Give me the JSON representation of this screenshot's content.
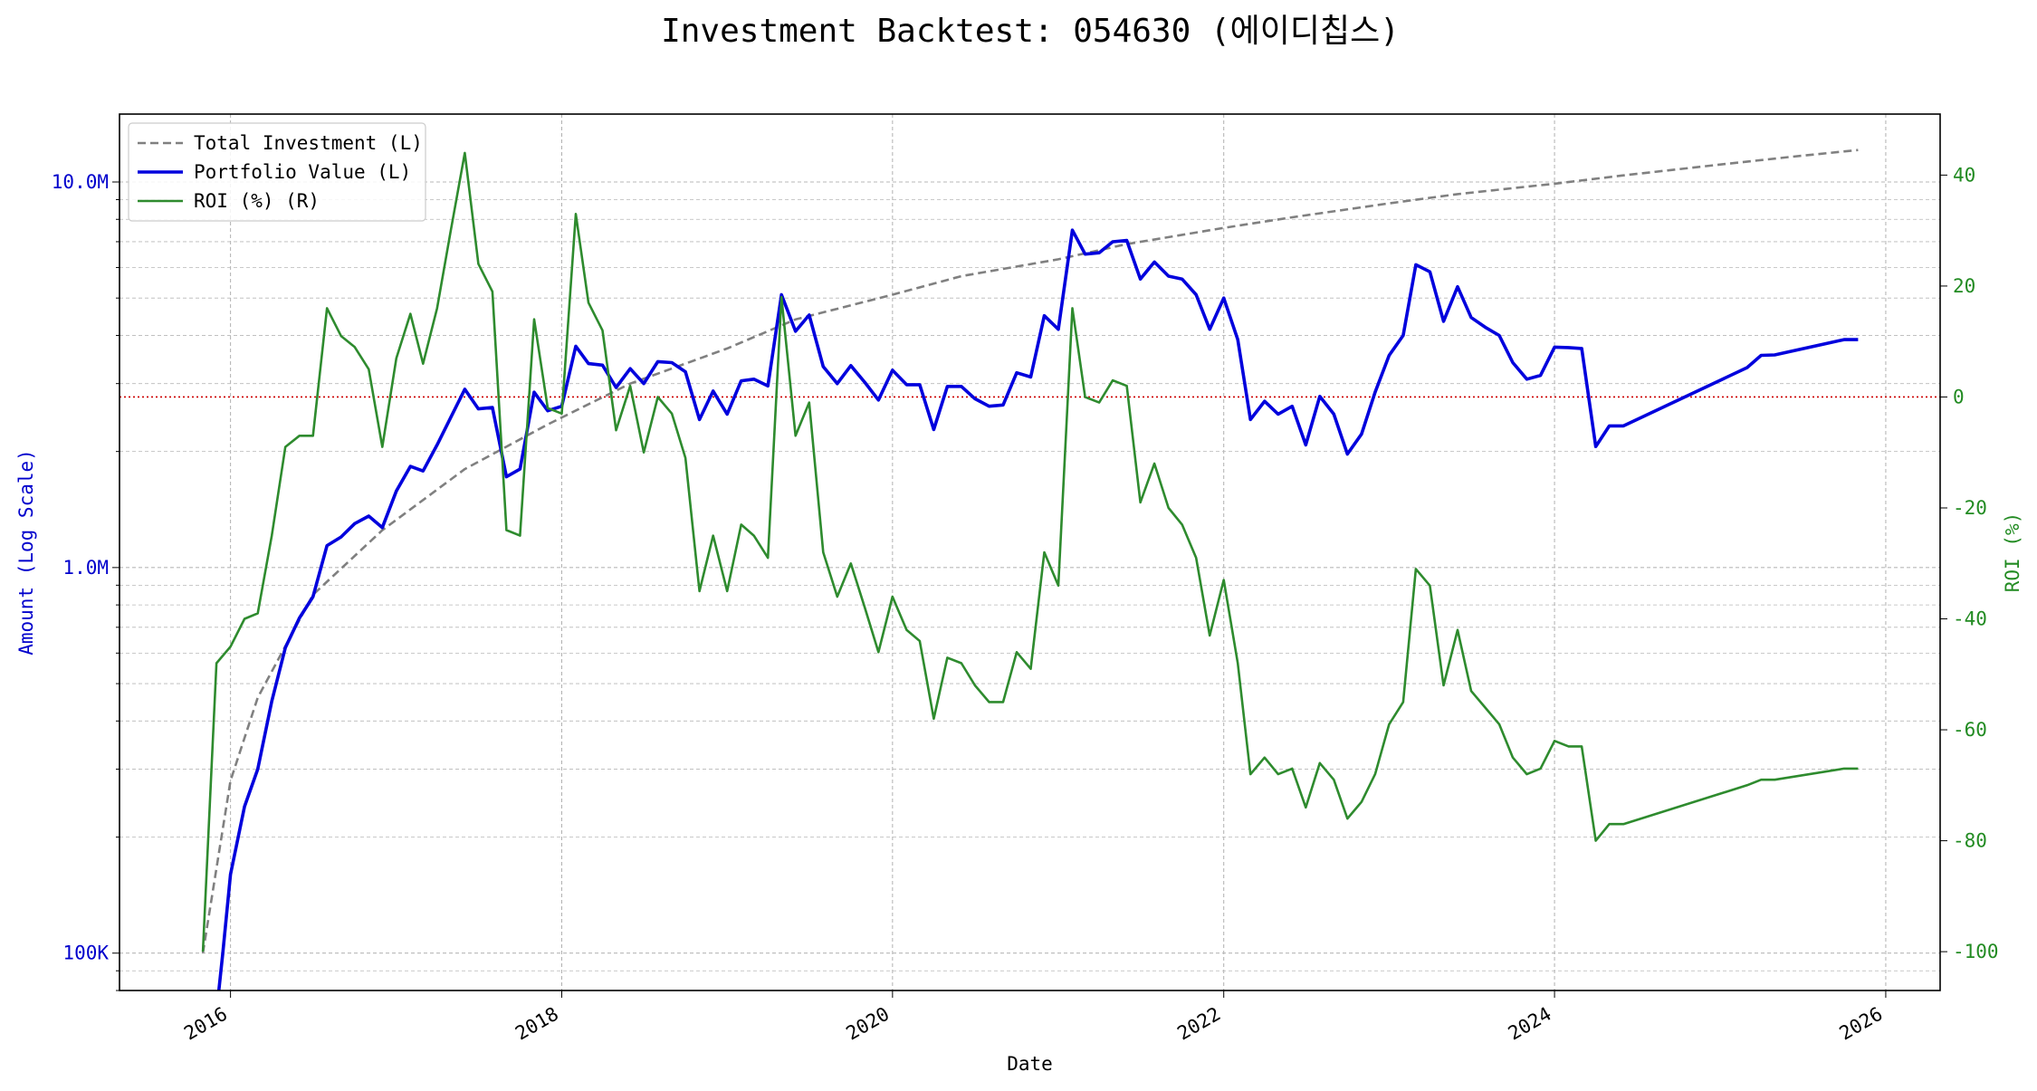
{
  "chart_data": {
    "type": "line",
    "title": "Investment Backtest: 054630 (에이디칩스)",
    "xlabel": "Date",
    "ylabel_left": "Amount (Log Scale)",
    "ylabel_right": "ROI (%)",
    "x_scale": "time",
    "xlim": [
      "2015-05-01",
      "2026-05-01"
    ],
    "x_ticks": [
      "2016",
      "2018",
      "2020",
      "2022",
      "2024",
      "2026"
    ],
    "y_left_scale": "log",
    "y_left_lim": [
      80000,
      15000000
    ],
    "y_left_ticks": [
      {
        "value": 100000,
        "label": "100K"
      },
      {
        "value": 1000000,
        "label": "1.0M"
      },
      {
        "value": 10000000,
        "label": "10.0M"
      }
    ],
    "y_right_lim": [
      -107,
      51
    ],
    "y_right_ticks": [
      -100,
      -80,
      -60,
      -40,
      -20,
      0,
      20,
      40
    ],
    "zero_line": {
      "axis": "right",
      "value": 0,
      "color": "#cc0000",
      "style": "dotted"
    },
    "grid": true,
    "legend_position": "upper-left",
    "colors": {
      "total": "#808080",
      "portfolio": "#0000dd",
      "roi": "#2e8b2e"
    },
    "legend": [
      {
        "label": "Total Investment (L)",
        "series": "total"
      },
      {
        "label": "Portfolio Value (L)",
        "series": "portfolio"
      },
      {
        "label": "ROI (%) (R)",
        "series": "roi"
      }
    ],
    "series": [
      {
        "key": "total",
        "name": "Total Investment (L)",
        "axis": "left",
        "style": "dashed",
        "points": [
          [
            "2015-11-01",
            100000
          ],
          [
            "2016-01-01",
            280000
          ],
          [
            "2016-03-01",
            460000
          ],
          [
            "2016-07-01",
            850000
          ],
          [
            "2016-12-01",
            1250000
          ],
          [
            "2017-06-01",
            1800000
          ],
          [
            "2017-12-01",
            2350000
          ],
          [
            "2018-06-01",
            3000000
          ],
          [
            "2019-01-01",
            3700000
          ],
          [
            "2019-06-01",
            4400000
          ],
          [
            "2020-01-01",
            5100000
          ],
          [
            "2020-06-01",
            5700000
          ],
          [
            "2021-01-01",
            6300000
          ],
          [
            "2021-06-01",
            6900000
          ],
          [
            "2022-01-01",
            7600000
          ],
          [
            "2022-06-01",
            8100000
          ],
          [
            "2023-01-01",
            8800000
          ],
          [
            "2023-06-01",
            9300000
          ],
          [
            "2024-01-01",
            9900000
          ],
          [
            "2024-06-01",
            10400000
          ],
          [
            "2025-01-01",
            11100000
          ],
          [
            "2025-06-01",
            11600000
          ],
          [
            "2025-11-01",
            12100000
          ]
        ]
      },
      {
        "key": "portfolio",
        "name": "Portfolio Value (L)",
        "axis": "left",
        "style": "solid",
        "points": [
          [
            "2015-12-01",
            70000
          ],
          [
            "2015-12-15",
            100000
          ],
          [
            "2016-01-01",
            160000
          ],
          [
            "2016-02-01",
            240000
          ],
          [
            "2016-03-01",
            300000
          ],
          [
            "2016-04-01",
            450000
          ],
          [
            "2016-05-01",
            620000
          ],
          [
            "2016-06-01",
            740000
          ],
          [
            "2016-07-01",
            840000
          ],
          [
            "2016-08-01",
            1140000
          ],
          [
            "2016-09-01",
            1200000
          ],
          [
            "2016-10-01",
            1300000
          ],
          [
            "2016-11-01",
            1360000
          ],
          [
            "2016-12-01",
            1270000
          ],
          [
            "2017-01-01",
            1580000
          ],
          [
            "2017-02-01",
            1830000
          ],
          [
            "2017-03-01",
            1780000
          ],
          [
            "2017-04-01",
            2080000
          ],
          [
            "2017-05-01",
            2450000
          ],
          [
            "2017-06-01",
            2900000
          ],
          [
            "2017-07-01",
            2580000
          ],
          [
            "2017-08-01",
            2600000
          ],
          [
            "2017-09-01",
            1720000
          ],
          [
            "2017-10-01",
            1800000
          ],
          [
            "2017-11-01",
            2850000
          ],
          [
            "2017-12-01",
            2550000
          ],
          [
            "2018-01-01",
            2620000
          ],
          [
            "2018-02-01",
            3750000
          ],
          [
            "2018-03-01",
            3380000
          ],
          [
            "2018-04-01",
            3350000
          ],
          [
            "2018-05-01",
            2930000
          ],
          [
            "2018-06-01",
            3280000
          ],
          [
            "2018-07-01",
            3000000
          ],
          [
            "2018-08-01",
            3420000
          ],
          [
            "2018-09-01",
            3400000
          ],
          [
            "2018-10-01",
            3220000
          ],
          [
            "2018-11-01",
            2420000
          ],
          [
            "2018-12-01",
            2870000
          ],
          [
            "2019-01-01",
            2500000
          ],
          [
            "2019-02-01",
            3050000
          ],
          [
            "2019-03-01",
            3080000
          ],
          [
            "2019-04-01",
            2960000
          ],
          [
            "2019-05-01",
            5100000
          ],
          [
            "2019-06-01",
            4100000
          ],
          [
            "2019-07-01",
            4520000
          ],
          [
            "2019-08-01",
            3320000
          ],
          [
            "2019-09-01",
            3000000
          ],
          [
            "2019-10-01",
            3340000
          ],
          [
            "2019-11-01",
            3020000
          ],
          [
            "2019-12-01",
            2720000
          ],
          [
            "2020-01-01",
            3250000
          ],
          [
            "2020-02-01",
            2980000
          ],
          [
            "2020-03-01",
            2980000
          ],
          [
            "2020-04-01",
            2280000
          ],
          [
            "2020-05-01",
            2950000
          ],
          [
            "2020-06-01",
            2950000
          ],
          [
            "2020-07-01",
            2740000
          ],
          [
            "2020-08-01",
            2620000
          ],
          [
            "2020-09-01",
            2640000
          ],
          [
            "2020-10-01",
            3200000
          ],
          [
            "2020-11-01",
            3120000
          ],
          [
            "2020-12-01",
            4500000
          ],
          [
            "2021-01-01",
            4150000
          ],
          [
            "2021-02-01",
            7500000
          ],
          [
            "2021-03-01",
            6500000
          ],
          [
            "2021-04-01",
            6550000
          ],
          [
            "2021-05-01",
            7000000
          ],
          [
            "2021-06-01",
            7050000
          ],
          [
            "2021-07-01",
            5600000
          ],
          [
            "2021-08-01",
            6200000
          ],
          [
            "2021-09-01",
            5700000
          ],
          [
            "2021-10-01",
            5600000
          ],
          [
            "2021-11-01",
            5100000
          ],
          [
            "2021-12-01",
            4150000
          ],
          [
            "2022-01-01",
            5000000
          ],
          [
            "2022-02-01",
            3900000
          ],
          [
            "2022-03-01",
            2420000
          ],
          [
            "2022-04-01",
            2700000
          ],
          [
            "2022-05-01",
            2500000
          ],
          [
            "2022-06-01",
            2620000
          ],
          [
            "2022-07-01",
            2080000
          ],
          [
            "2022-08-01",
            2780000
          ],
          [
            "2022-09-01",
            2500000
          ],
          [
            "2022-10-01",
            1970000
          ],
          [
            "2022-11-01",
            2220000
          ],
          [
            "2022-12-01",
            2850000
          ],
          [
            "2023-01-01",
            3550000
          ],
          [
            "2023-02-01",
            4000000
          ],
          [
            "2023-03-01",
            6100000
          ],
          [
            "2023-04-01",
            5850000
          ],
          [
            "2023-05-01",
            4350000
          ],
          [
            "2023-06-01",
            5350000
          ],
          [
            "2023-07-01",
            4450000
          ],
          [
            "2023-08-01",
            4200000
          ],
          [
            "2023-09-01",
            4000000
          ],
          [
            "2023-10-01",
            3400000
          ],
          [
            "2023-11-01",
            3080000
          ],
          [
            "2023-12-01",
            3150000
          ],
          [
            "2024-01-01",
            3730000
          ],
          [
            "2024-02-01",
            3720000
          ],
          [
            "2024-03-01",
            3700000
          ],
          [
            "2024-04-01",
            2060000
          ],
          [
            "2024-05-01",
            2330000
          ],
          [
            "2024-06-01",
            2330000
          ],
          [
            "2025-03-01",
            3300000
          ],
          [
            "2025-04-01",
            3550000
          ],
          [
            "2025-05-01",
            3560000
          ],
          [
            "2025-10-01",
            3900000
          ],
          [
            "2025-11-01",
            3900000
          ]
        ]
      },
      {
        "key": "roi",
        "name": "ROI (%) (R)",
        "axis": "right",
        "style": "solid",
        "points": [
          [
            "2015-11-01",
            -100
          ],
          [
            "2015-12-01",
            -48
          ],
          [
            "2016-01-01",
            -45
          ],
          [
            "2016-02-01",
            -40
          ],
          [
            "2016-03-01",
            -39
          ],
          [
            "2016-04-01",
            -25
          ],
          [
            "2016-05-01",
            -9
          ],
          [
            "2016-06-01",
            -7
          ],
          [
            "2016-07-01",
            -7
          ],
          [
            "2016-08-01",
            16
          ],
          [
            "2016-09-01",
            11
          ],
          [
            "2016-10-01",
            9
          ],
          [
            "2016-11-01",
            5
          ],
          [
            "2016-12-01",
            -9
          ],
          [
            "2017-01-01",
            7
          ],
          [
            "2017-02-01",
            15
          ],
          [
            "2017-03-01",
            6
          ],
          [
            "2017-04-01",
            16
          ],
          [
            "2017-05-01",
            30
          ],
          [
            "2017-06-01",
            44
          ],
          [
            "2017-07-01",
            24
          ],
          [
            "2017-08-01",
            19
          ],
          [
            "2017-09-01",
            -24
          ],
          [
            "2017-10-01",
            -25
          ],
          [
            "2017-11-01",
            14
          ],
          [
            "2017-12-01",
            -2
          ],
          [
            "2018-01-01",
            -3
          ],
          [
            "2018-02-01",
            33
          ],
          [
            "2018-03-01",
            17
          ],
          [
            "2018-04-01",
            12
          ],
          [
            "2018-05-01",
            -6
          ],
          [
            "2018-06-01",
            2
          ],
          [
            "2018-07-01",
            -10
          ],
          [
            "2018-08-01",
            0
          ],
          [
            "2018-09-01",
            -3
          ],
          [
            "2018-10-01",
            -11
          ],
          [
            "2018-11-01",
            -35
          ],
          [
            "2018-12-01",
            -25
          ],
          [
            "2019-01-01",
            -35
          ],
          [
            "2019-02-01",
            -23
          ],
          [
            "2019-03-01",
            -25
          ],
          [
            "2019-04-01",
            -29
          ],
          [
            "2019-05-01",
            18
          ],
          [
            "2019-06-01",
            -7
          ],
          [
            "2019-07-01",
            -1
          ],
          [
            "2019-08-01",
            -28
          ],
          [
            "2019-09-01",
            -36
          ],
          [
            "2019-10-01",
            -30
          ],
          [
            "2019-11-01",
            -38
          ],
          [
            "2019-12-01",
            -46
          ],
          [
            "2020-01-01",
            -36
          ],
          [
            "2020-02-01",
            -42
          ],
          [
            "2020-03-01",
            -44
          ],
          [
            "2020-04-01",
            -58
          ],
          [
            "2020-05-01",
            -47
          ],
          [
            "2020-06-01",
            -48
          ],
          [
            "2020-07-01",
            -52
          ],
          [
            "2020-08-01",
            -55
          ],
          [
            "2020-09-01",
            -55
          ],
          [
            "2020-10-01",
            -46
          ],
          [
            "2020-11-01",
            -49
          ],
          [
            "2020-12-01",
            -28
          ],
          [
            "2021-01-01",
            -34
          ],
          [
            "2021-02-01",
            16
          ],
          [
            "2021-03-01",
            0
          ],
          [
            "2021-04-01",
            -1
          ],
          [
            "2021-05-01",
            3
          ],
          [
            "2021-06-01",
            2
          ],
          [
            "2021-07-01",
            -19
          ],
          [
            "2021-08-01",
            -12
          ],
          [
            "2021-09-01",
            -20
          ],
          [
            "2021-10-01",
            -23
          ],
          [
            "2021-11-01",
            -29
          ],
          [
            "2021-12-01",
            -43
          ],
          [
            "2022-01-01",
            -33
          ],
          [
            "2022-02-01",
            -48
          ],
          [
            "2022-03-01",
            -68
          ],
          [
            "2022-04-01",
            -65
          ],
          [
            "2022-05-01",
            -68
          ],
          [
            "2022-06-01",
            -67
          ],
          [
            "2022-07-01",
            -74
          ],
          [
            "2022-08-01",
            -66
          ],
          [
            "2022-09-01",
            -69
          ],
          [
            "2022-10-01",
            -76
          ],
          [
            "2022-11-01",
            -73
          ],
          [
            "2022-12-01",
            -68
          ],
          [
            "2023-01-01",
            -59
          ],
          [
            "2023-02-01",
            -55
          ],
          [
            "2023-03-01",
            -31
          ],
          [
            "2023-04-01",
            -34
          ],
          [
            "2023-05-01",
            -52
          ],
          [
            "2023-06-01",
            -42
          ],
          [
            "2023-07-01",
            -53
          ],
          [
            "2023-08-01",
            -56
          ],
          [
            "2023-09-01",
            -59
          ],
          [
            "2023-10-01",
            -65
          ],
          [
            "2023-11-01",
            -68
          ],
          [
            "2023-12-01",
            -67
          ],
          [
            "2024-01-01",
            -62
          ],
          [
            "2024-02-01",
            -63
          ],
          [
            "2024-03-01",
            -63
          ],
          [
            "2024-04-01",
            -80
          ],
          [
            "2024-05-01",
            -77
          ],
          [
            "2024-06-01",
            -77
          ],
          [
            "2025-03-01",
            -70
          ],
          [
            "2025-04-01",
            -69
          ],
          [
            "2025-05-01",
            -69
          ],
          [
            "2025-10-01",
            -67
          ],
          [
            "2025-11-01",
            -67
          ]
        ]
      }
    ]
  }
}
